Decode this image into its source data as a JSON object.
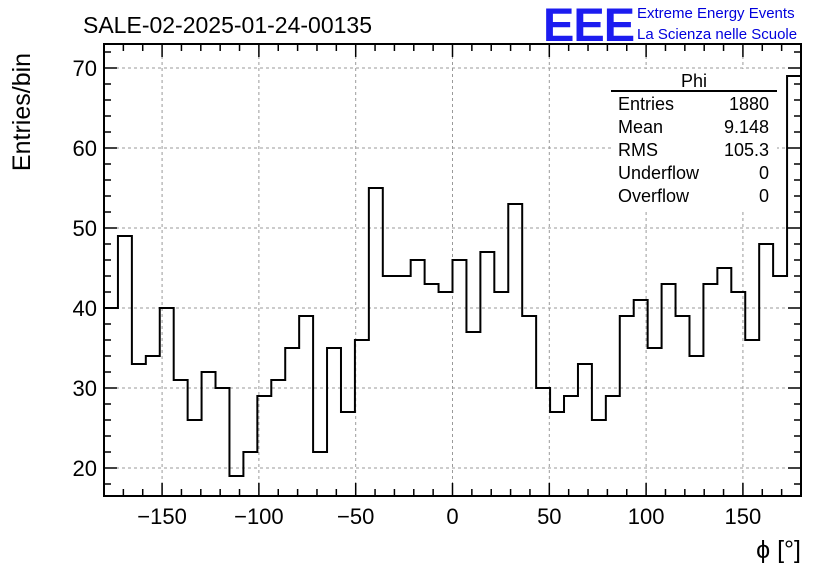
{
  "chart_data": {
    "type": "histogram",
    "title": "SALE-02-2025-01-24-00135",
    "xlabel": "ϕ [°]",
    "ylabel": "Entries/bin",
    "xlim": [
      -180,
      180
    ],
    "ylim": [
      16.5,
      73
    ],
    "bin_width": 7.2,
    "grid": true,
    "x_ticks": [
      -150,
      -100,
      -50,
      0,
      50,
      100,
      150
    ],
    "x_tick_labels": [
      "−150",
      "−100",
      "−50",
      "0",
      "50",
      "100",
      "150"
    ],
    "y_ticks": [
      20,
      30,
      40,
      50,
      60,
      70
    ],
    "y_tick_labels": [
      "20",
      "30",
      "40",
      "50",
      "60",
      "70"
    ],
    "values": [
      40,
      49,
      33,
      34,
      40,
      31,
      26,
      32,
      30,
      19,
      22,
      29,
      31,
      35,
      39,
      22,
      35,
      27,
      36,
      55,
      44,
      44,
      46,
      43,
      42,
      46,
      37,
      47,
      42,
      53,
      39,
      30,
      27,
      29,
      33,
      26,
      29,
      39,
      41,
      35,
      43,
      39,
      34,
      43,
      45,
      42,
      36,
      48,
      44,
      69
    ],
    "stats_box": {
      "title": "Phi",
      "rows": [
        {
          "label": "Entries",
          "value": "1880"
        },
        {
          "label": "Mean",
          "value": "9.148"
        },
        {
          "label": "RMS",
          "value": "105.3"
        },
        {
          "label": "Underflow",
          "value": "0"
        },
        {
          "label": "Overflow",
          "value": "0"
        }
      ]
    }
  },
  "logo": {
    "mark": "EEE",
    "line1": "Extreme Energy Events",
    "line2": "La Scienza nelle Scuole"
  },
  "colors": {
    "line": "#000000",
    "grid": "#9a9a9a",
    "logo": "#1c1cf0"
  }
}
